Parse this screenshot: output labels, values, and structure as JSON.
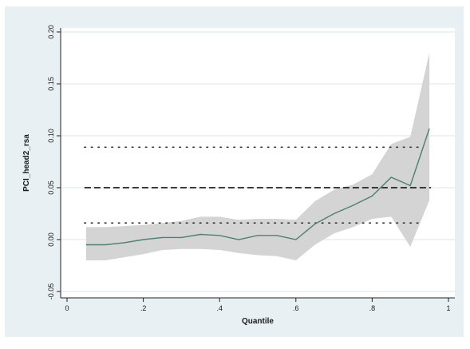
{
  "chart_data": {
    "type": "line",
    "xlabel": "Quantile",
    "ylabel": "PCI_head2_rsa",
    "xlim": [
      0,
      1
    ],
    "ylim": [
      -0.05,
      0.2
    ],
    "x_ticks": [
      "0",
      ".2",
      ".4",
      ".6",
      ".8",
      "1"
    ],
    "y_ticks": [
      "-0.05",
      "0.00",
      "0.05",
      "0.10",
      "0.15",
      "0.20"
    ],
    "grid": "horizontal",
    "legend": "none",
    "series": [
      {
        "role": "quantile estimate",
        "color": "#4f7f72",
        "x": [
          0.05,
          0.1,
          0.15,
          0.2,
          0.25,
          0.3,
          0.35,
          0.4,
          0.45,
          0.5,
          0.55,
          0.6,
          0.65,
          0.7,
          0.75,
          0.8,
          0.85,
          0.9,
          0.95
        ],
        "y": [
          -0.005,
          -0.005,
          -0.003,
          0.0,
          0.002,
          0.002,
          0.005,
          0.004,
          0.0,
          0.004,
          0.004,
          0.0,
          0.015,
          0.025,
          0.033,
          0.042,
          0.06,
          0.052,
          0.107
        ]
      }
    ],
    "confidence_band": {
      "color": "#d4d4d4",
      "x": [
        0.05,
        0.1,
        0.15,
        0.2,
        0.25,
        0.3,
        0.35,
        0.4,
        0.45,
        0.5,
        0.55,
        0.6,
        0.65,
        0.7,
        0.75,
        0.8,
        0.85,
        0.9,
        0.95
      ],
      "lower": [
        -0.02,
        -0.02,
        -0.017,
        -0.014,
        -0.01,
        -0.009,
        -0.009,
        -0.01,
        -0.013,
        -0.015,
        -0.016,
        -0.02,
        -0.005,
        0.006,
        0.012,
        0.02,
        0.022,
        -0.007,
        0.038
      ],
      "upper": [
        0.012,
        0.012,
        0.013,
        0.014,
        0.016,
        0.018,
        0.022,
        0.022,
        0.019,
        0.02,
        0.02,
        0.019,
        0.037,
        0.048,
        0.053,
        0.063,
        0.092,
        0.099,
        0.18
      ]
    },
    "reference_lines": [
      {
        "y": 0.05,
        "style": "dashed",
        "color": "#222222"
      },
      {
        "y": 0.089,
        "style": "dotted",
        "color": "#333333"
      },
      {
        "y": 0.016,
        "style": "dotted",
        "color": "#333333"
      }
    ]
  }
}
